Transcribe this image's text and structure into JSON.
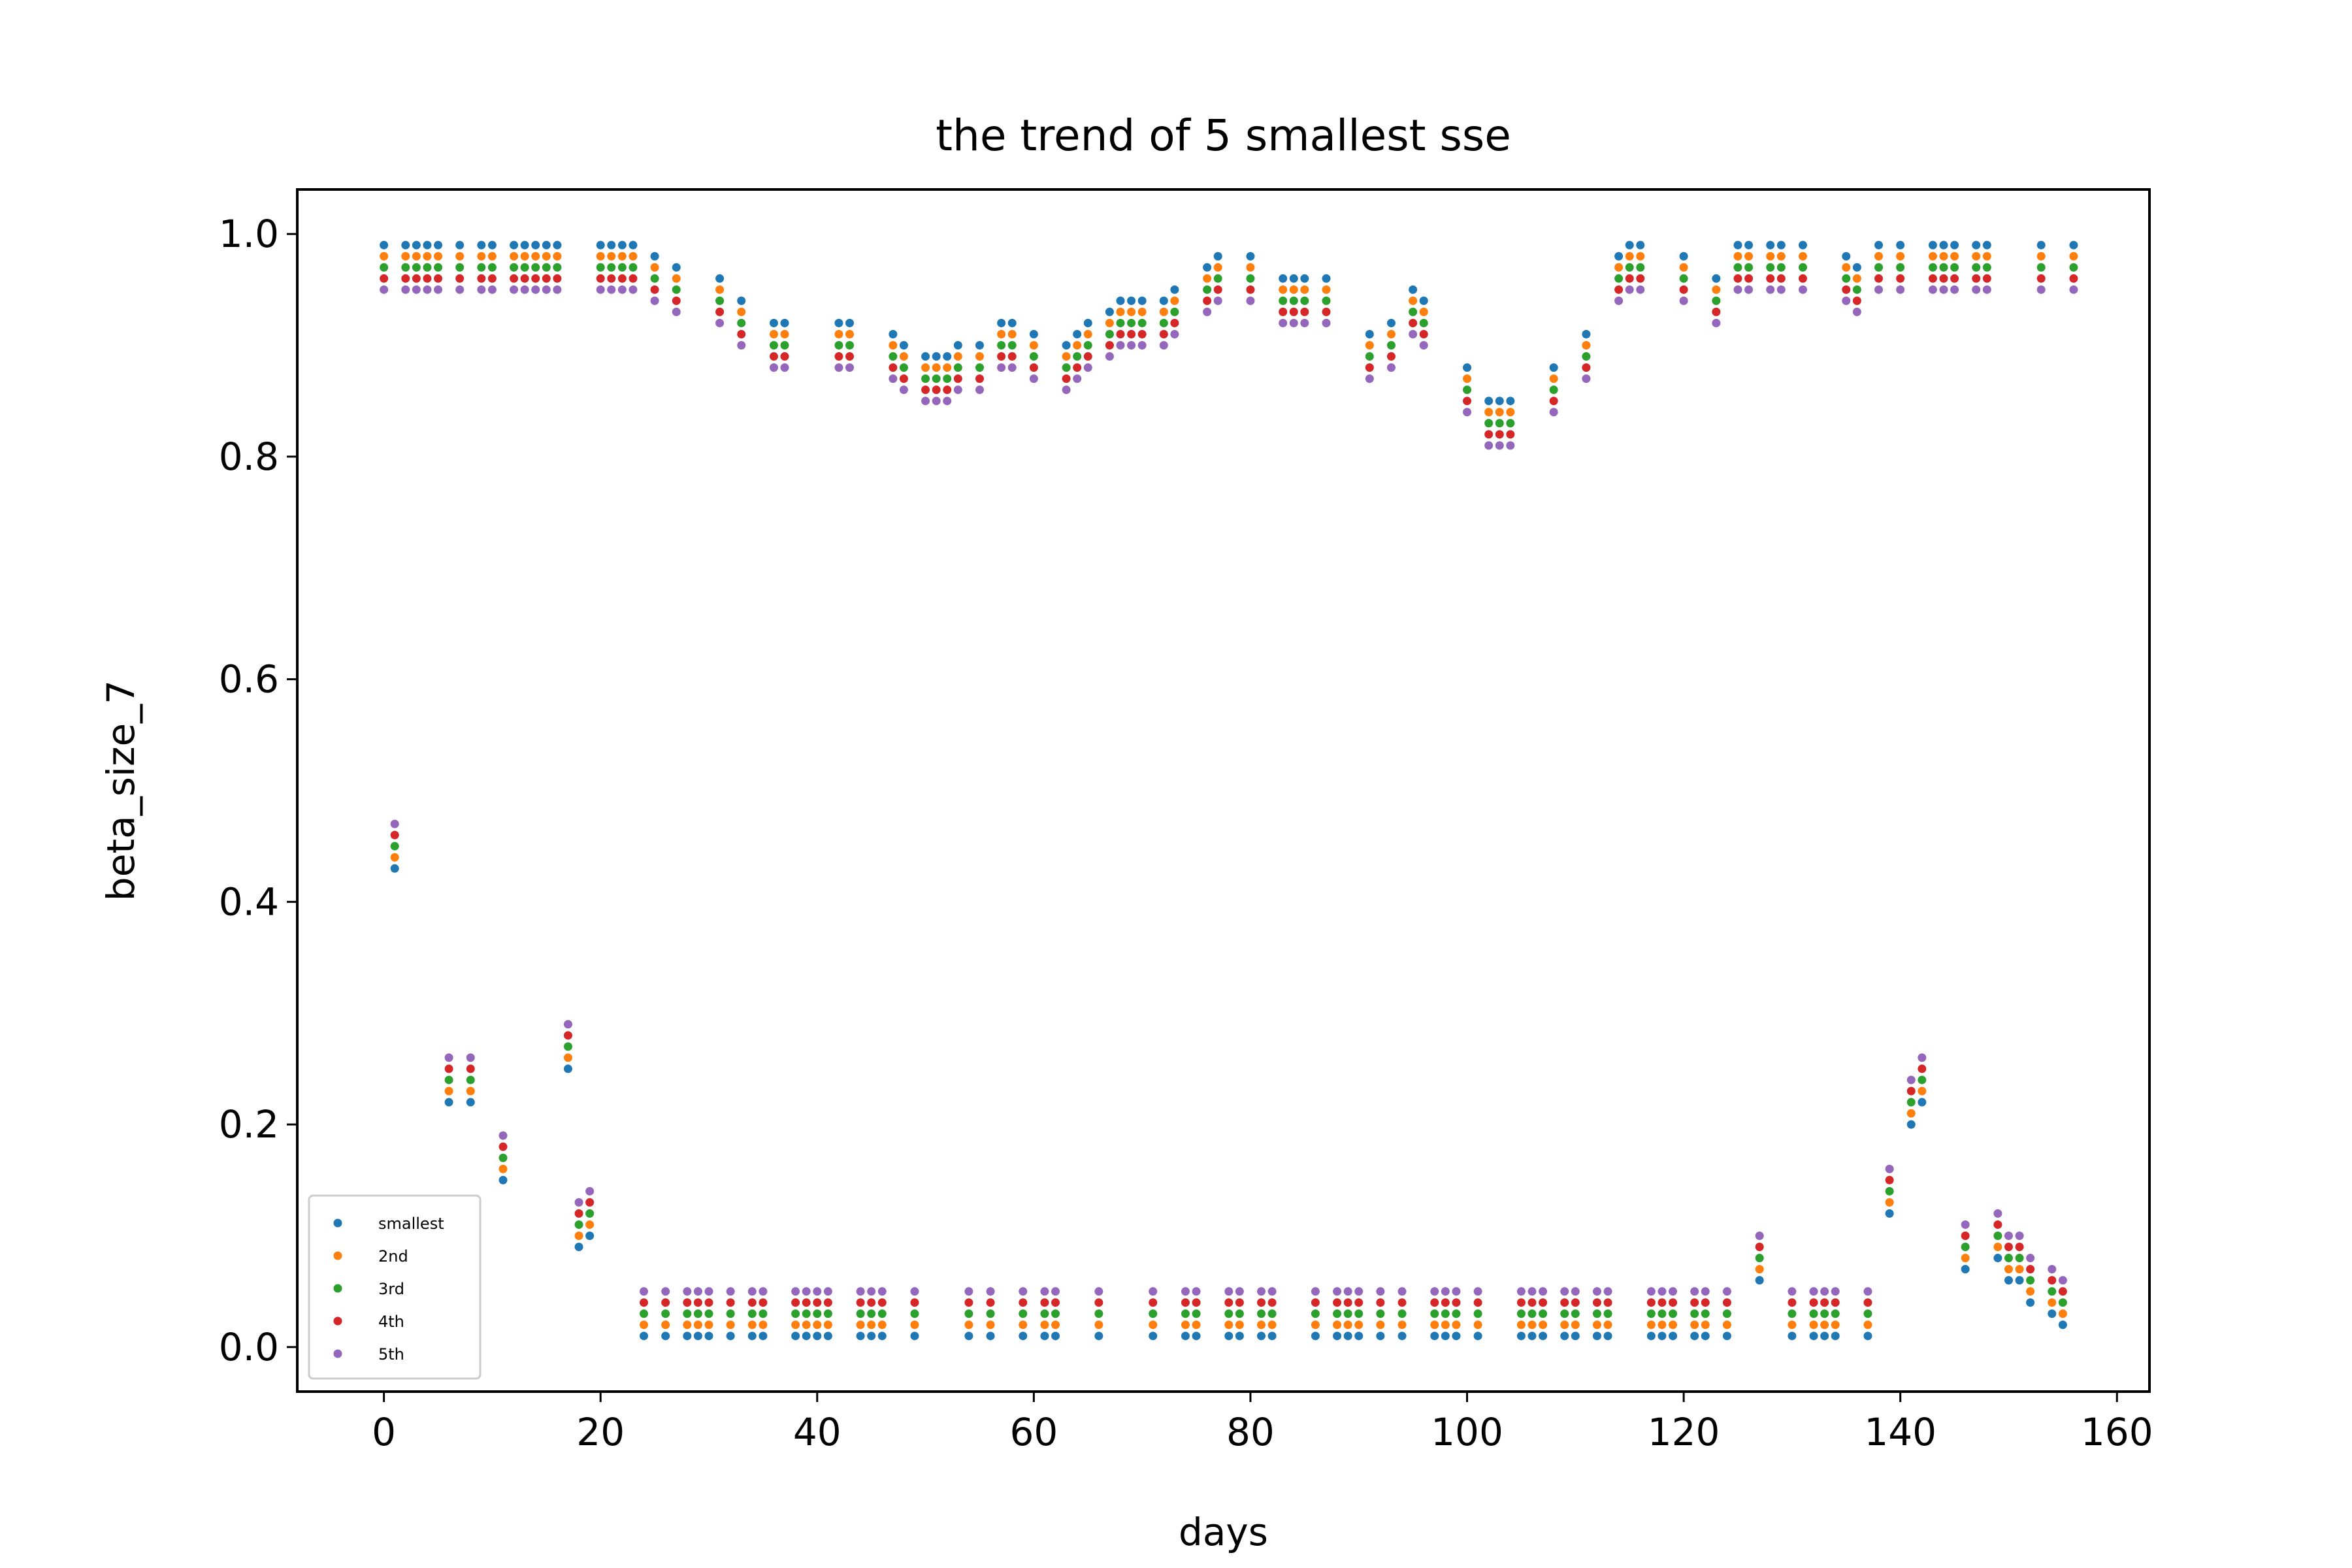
{
  "chart_data": {
    "type": "scatter",
    "title": "the trend of 5 smallest sse",
    "xlabel": "days",
    "ylabel": "beta_size_7",
    "xlim": [
      -8,
      163
    ],
    "ylim": [
      -0.04,
      1.04
    ],
    "xticks": [
      0,
      20,
      40,
      60,
      80,
      100,
      120,
      140,
      160
    ],
    "yticks": [
      0.0,
      0.2,
      0.4,
      0.6,
      0.8,
      1.0
    ],
    "xtick_labels": [
      "0",
      "20",
      "40",
      "60",
      "80",
      "100",
      "120",
      "140",
      "160"
    ],
    "ytick_labels": [
      "0.0",
      "0.2",
      "0.4",
      "0.6",
      "0.8",
      "1.0"
    ],
    "grid": false,
    "legend_position": "lower-left",
    "series": [
      {
        "name": "smallest",
        "color": "#1f77b4"
      },
      {
        "name": "2nd",
        "color": "#ff7f0e"
      },
      {
        "name": "3rd",
        "color": "#2ca02c"
      },
      {
        "name": "4th",
        "color": "#d62728"
      },
      {
        "name": "5th",
        "color": "#9467bd"
      }
    ],
    "points": [
      [
        0,
        0.99
      ],
      [
        1,
        0.43
      ],
      [
        2,
        0.99
      ],
      [
        3,
        0.99
      ],
      [
        4,
        0.99
      ],
      [
        5,
        0.99
      ],
      [
        6,
        0.22
      ],
      [
        7,
        0.99
      ],
      [
        8,
        0.22
      ],
      [
        9,
        0.99
      ],
      [
        10,
        0.99
      ],
      [
        11,
        0.15
      ],
      [
        12,
        0.99
      ],
      [
        13,
        0.99
      ],
      [
        14,
        0.99
      ],
      [
        15,
        0.99
      ],
      [
        16,
        0.99
      ],
      [
        17,
        0.25
      ],
      [
        18,
        0.09
      ],
      [
        19,
        0.1
      ],
      [
        20,
        0.99
      ],
      [
        21,
        0.99
      ],
      [
        22,
        0.99
      ],
      [
        23,
        0.99
      ],
      [
        24,
        0.01
      ],
      [
        25,
        0.98
      ],
      [
        26,
        0.01
      ],
      [
        27,
        0.97
      ],
      [
        28,
        0.01
      ],
      [
        29,
        0.01
      ],
      [
        30,
        0.01
      ],
      [
        31,
        0.96
      ],
      [
        32,
        0.01
      ],
      [
        33,
        0.94
      ],
      [
        34,
        0.01
      ],
      [
        35,
        0.01
      ],
      [
        36,
        0.92
      ],
      [
        37,
        0.92
      ],
      [
        38,
        0.01
      ],
      [
        39,
        0.01
      ],
      [
        40,
        0.01
      ],
      [
        41,
        0.01
      ],
      [
        42,
        0.92
      ],
      [
        43,
        0.92
      ],
      [
        44,
        0.01
      ],
      [
        45,
        0.01
      ],
      [
        46,
        0.01
      ],
      [
        47,
        0.91
      ],
      [
        48,
        0.9
      ],
      [
        49,
        0.01
      ],
      [
        50,
        0.89
      ],
      [
        51,
        0.89
      ],
      [
        52,
        0.89
      ],
      [
        53,
        0.9
      ],
      [
        54,
        0.01
      ],
      [
        55,
        0.9
      ],
      [
        56,
        0.01
      ],
      [
        57,
        0.92
      ],
      [
        58,
        0.92
      ],
      [
        59,
        0.01
      ],
      [
        60,
        0.91
      ],
      [
        61,
        0.01
      ],
      [
        62,
        0.01
      ],
      [
        63,
        0.9
      ],
      [
        64,
        0.91
      ],
      [
        65,
        0.92
      ],
      [
        66,
        0.01
      ],
      [
        67,
        0.93
      ],
      [
        68,
        0.94
      ],
      [
        69,
        0.94
      ],
      [
        70,
        0.94
      ],
      [
        71,
        0.01
      ],
      [
        72,
        0.94
      ],
      [
        73,
        0.95
      ],
      [
        74,
        0.01
      ],
      [
        75,
        0.01
      ],
      [
        76,
        0.97
      ],
      [
        77,
        0.98
      ],
      [
        78,
        0.01
      ],
      [
        79,
        0.01
      ],
      [
        80,
        0.98
      ],
      [
        81,
        0.01
      ],
      [
        82,
        0.01
      ],
      [
        83,
        0.96
      ],
      [
        84,
        0.96
      ],
      [
        85,
        0.96
      ],
      [
        86,
        0.01
      ],
      [
        87,
        0.96
      ],
      [
        88,
        0.01
      ],
      [
        89,
        0.01
      ],
      [
        90,
        0.01
      ],
      [
        91,
        0.91
      ],
      [
        92,
        0.01
      ],
      [
        93,
        0.92
      ],
      [
        94,
        0.01
      ],
      [
        95,
        0.95
      ],
      [
        96,
        0.94
      ],
      [
        97,
        0.01
      ],
      [
        98,
        0.01
      ],
      [
        99,
        0.01
      ],
      [
        100,
        0.88
      ],
      [
        101,
        0.01
      ],
      [
        102,
        0.85
      ],
      [
        103,
        0.85
      ],
      [
        104,
        0.85
      ],
      [
        105,
        0.01
      ],
      [
        106,
        0.01
      ],
      [
        107,
        0.01
      ],
      [
        108,
        0.88
      ],
      [
        109,
        0.01
      ],
      [
        110,
        0.01
      ],
      [
        111,
        0.91
      ],
      [
        112,
        0.01
      ],
      [
        113,
        0.01
      ],
      [
        114,
        0.98
      ],
      [
        115,
        0.99
      ],
      [
        116,
        0.99
      ],
      [
        117,
        0.01
      ],
      [
        118,
        0.01
      ],
      [
        119,
        0.01
      ],
      [
        120,
        0.98
      ],
      [
        121,
        0.01
      ],
      [
        122,
        0.01
      ],
      [
        123,
        0.96
      ],
      [
        124,
        0.01
      ],
      [
        125,
        0.99
      ],
      [
        126,
        0.99
      ],
      [
        127,
        0.06
      ],
      [
        128,
        0.99
      ],
      [
        129,
        0.99
      ],
      [
        130,
        0.01
      ],
      [
        131,
        0.99
      ],
      [
        132,
        0.01
      ],
      [
        133,
        0.01
      ],
      [
        134,
        0.01
      ],
      [
        135,
        0.98
      ],
      [
        136,
        0.97
      ],
      [
        137,
        0.01
      ],
      [
        138,
        0.99
      ],
      [
        139,
        0.12
      ],
      [
        140,
        0.99
      ],
      [
        141,
        0.2
      ],
      [
        142,
        0.22
      ],
      [
        143,
        0.99
      ],
      [
        144,
        0.99
      ],
      [
        145,
        0.99
      ],
      [
        146,
        0.07
      ],
      [
        147,
        0.99
      ],
      [
        148,
        0.99
      ],
      [
        149,
        0.08
      ],
      [
        150,
        0.06
      ],
      [
        151,
        0.06
      ],
      [
        152,
        0.04
      ],
      [
        153,
        0.99
      ],
      [
        154,
        0.03
      ],
      [
        155,
        0.02
      ],
      [
        156,
        0.99
      ]
    ]
  }
}
